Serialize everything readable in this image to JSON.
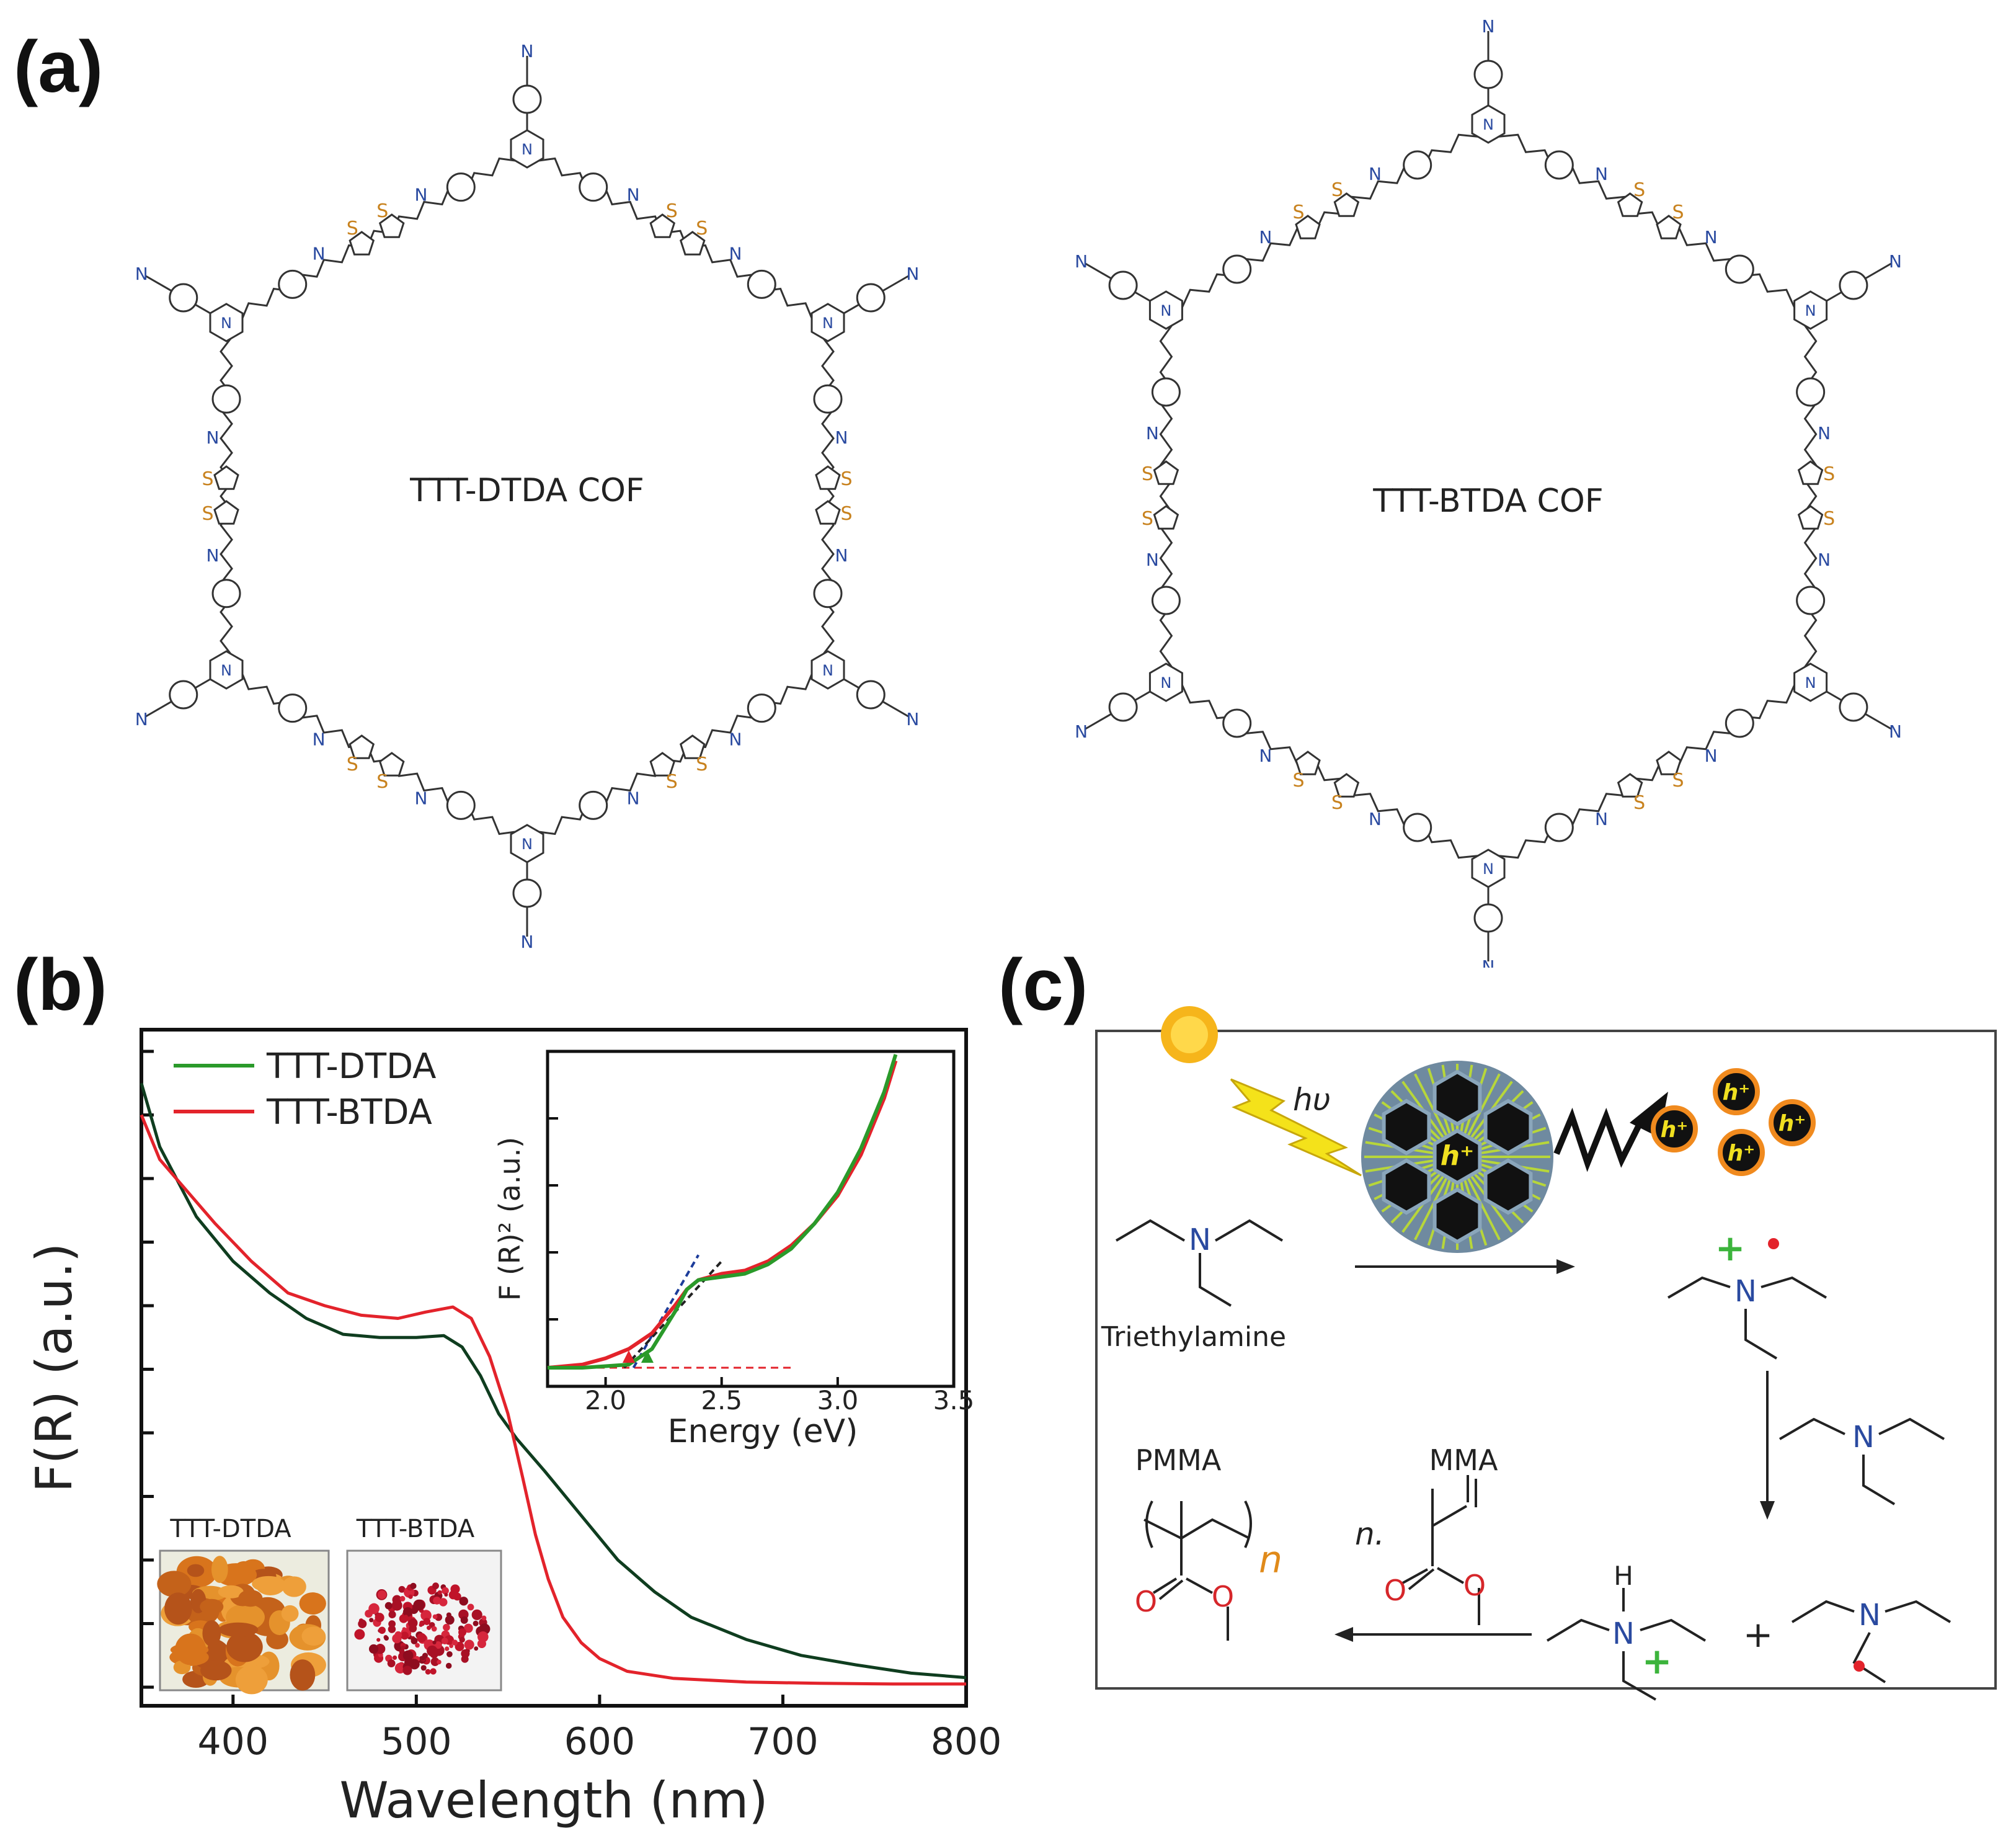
{
  "panels": {
    "a": "(a)",
    "b": "(b)",
    "c": "(c)"
  },
  "structures": {
    "left_title": "TTT-DTDA COF",
    "right_title": "TTT-BTDA COF",
    "atom_N": "N",
    "atom_S": "S"
  },
  "colors": {
    "green": "#2a9a2a",
    "red": "#e3232b",
    "dark_green": "#0f3d1f",
    "nitrogen": "#2a4aa0",
    "sulfur": "#c8821e",
    "oxygen": "#d6262a"
  },
  "chart_data": [
    {
      "type": "line",
      "ylabel": "F(R) (a.u.)",
      "xlabel": "Wavelength (nm)",
      "xlim": [
        350,
        800
      ],
      "ylim": [
        0,
        1
      ],
      "x_ticks": [
        "400",
        "500",
        "600",
        "700",
        "800"
      ],
      "series": [
        {
          "name": "TTT-DTDA",
          "x": [
            350,
            360,
            380,
            400,
            420,
            440,
            460,
            480,
            500,
            515,
            525,
            535,
            545,
            555,
            570,
            590,
            610,
            630,
            650,
            680,
            710,
            740,
            770,
            800
          ],
          "y": [
            0.95,
            0.85,
            0.74,
            0.67,
            0.62,
            0.58,
            0.555,
            0.55,
            0.55,
            0.553,
            0.535,
            0.49,
            0.43,
            0.39,
            0.34,
            0.27,
            0.2,
            0.15,
            0.11,
            0.075,
            0.05,
            0.035,
            0.022,
            0.015
          ]
        },
        {
          "name": "TTT-BTDA",
          "x": [
            350,
            360,
            375,
            390,
            410,
            430,
            450,
            470,
            490,
            505,
            520,
            530,
            540,
            550,
            558,
            565,
            572,
            580,
            590,
            600,
            615,
            640,
            680,
            720,
            760,
            800
          ],
          "y": [
            0.9,
            0.83,
            0.78,
            0.73,
            0.67,
            0.62,
            0.6,
            0.585,
            0.58,
            0.59,
            0.598,
            0.58,
            0.52,
            0.43,
            0.33,
            0.24,
            0.17,
            0.11,
            0.07,
            0.045,
            0.025,
            0.014,
            0.008,
            0.006,
            0.005,
            0.005
          ]
        }
      ],
      "photo_labels": [
        "TTT-DTDA",
        "TTT-BTDA"
      ]
    },
    {
      "type": "line",
      "ylabel": "F (R)² (a.u.)",
      "xlabel": "Energy (eV)",
      "xlim": [
        1.75,
        3.5
      ],
      "ylim": [
        0,
        1
      ],
      "x_ticks": [
        "2.0",
        "2.5",
        "3.0",
        "3.5"
      ],
      "series": [
        {
          "name": "TTT-DTDA",
          "x": [
            1.75,
            1.9,
            2.0,
            2.1,
            2.2,
            2.3,
            2.35,
            2.4,
            2.5,
            2.6,
            2.7,
            2.8,
            2.9,
            3.0,
            3.1,
            3.2,
            3.25
          ],
          "y": [
            0.0,
            0.0,
            0.005,
            0.01,
            0.06,
            0.18,
            0.25,
            0.28,
            0.29,
            0.3,
            0.33,
            0.38,
            0.46,
            0.56,
            0.7,
            0.88,
            1.0
          ]
        },
        {
          "name": "TTT-BTDA",
          "x": [
            1.75,
            1.9,
            2.0,
            2.1,
            2.2,
            2.3,
            2.35,
            2.4,
            2.5,
            2.6,
            2.7,
            2.8,
            2.9,
            3.0,
            3.1,
            3.2,
            3.25
          ],
          "y": [
            0.0,
            0.01,
            0.03,
            0.06,
            0.11,
            0.2,
            0.25,
            0.28,
            0.3,
            0.31,
            0.34,
            0.39,
            0.46,
            0.55,
            0.68,
            0.86,
            0.98
          ]
        }
      ]
    }
  ],
  "scheme": {
    "hv": "hυ",
    "hole": "h⁺",
    "triethylamine": "Triethylamine",
    "pmma": "PMMA",
    "mma": "MMA",
    "n_dot": "n.",
    "n_sub": "n",
    "plus": "+",
    "atom_N": "N",
    "atom_H": "H",
    "atom_O": "O"
  }
}
